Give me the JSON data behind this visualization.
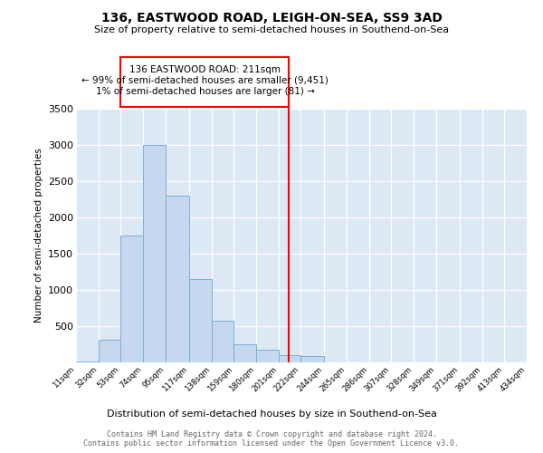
{
  "title": "136, EASTWOOD ROAD, LEIGH-ON-SEA, SS9 3AD",
  "subtitle": "Size of property relative to semi-detached houses in Southend-on-Sea",
  "xlabel": "Distribution of semi-detached houses by size in Southend-on-Sea",
  "ylabel": "Number of semi-detached properties",
  "bar_color": "#c5d8f0",
  "bar_edge_color": "#7aafd4",
  "vline_x": 211,
  "vline_color": "red",
  "annotation_line1": "136 EASTWOOD ROAD: 211sqm",
  "annotation_line2": "← 99% of semi-detached houses are smaller (9,451)",
  "annotation_line3": "1% of semi-detached houses are larger (81) →",
  "footer": "Contains HM Land Registry data © Crown copyright and database right 2024.\nContains public sector information licensed under the Open Government Licence v3.0.",
  "bins": [
    11,
    32,
    53,
    74,
    95,
    117,
    138,
    159,
    180,
    201,
    222,
    244,
    265,
    286,
    307,
    328,
    349,
    371,
    392,
    413,
    434
  ],
  "counts": [
    10,
    310,
    1750,
    3000,
    2300,
    1150,
    570,
    250,
    170,
    100,
    85,
    5,
    0,
    0,
    0,
    0,
    0,
    0,
    0,
    0
  ],
  "ylim": [
    0,
    3500
  ],
  "yticks": [
    0,
    500,
    1000,
    1500,
    2000,
    2500,
    3000,
    3500
  ],
  "background_color": "#dde8f5",
  "fig_background": "#ffffff"
}
